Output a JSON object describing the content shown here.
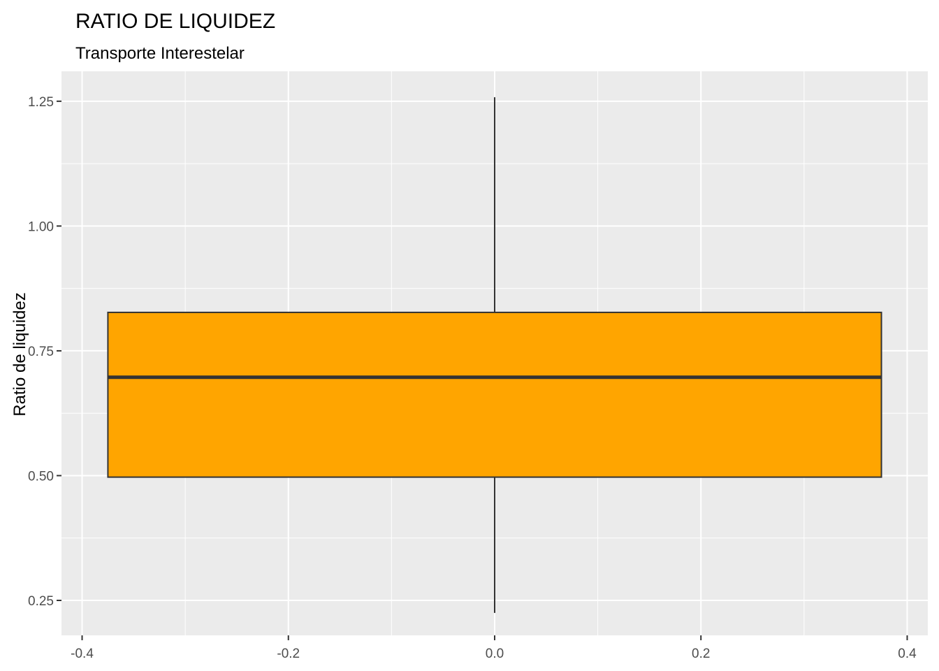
{
  "chart_data": {
    "type": "boxplot",
    "title": "RATIO DE LIQUIDEZ",
    "subtitle": "Transporte Interestelar",
    "xlabel": "",
    "ylabel": "Ratio de liquidez",
    "xlim": [
      -0.42,
      0.42
    ],
    "ylim": [
      0.18,
      1.31
    ],
    "x_ticks": [
      -0.4,
      -0.2,
      0.0,
      0.2,
      0.4
    ],
    "x_tick_labels": [
      "-0.4",
      "-0.2",
      "0.0",
      "0.2",
      "0.4"
    ],
    "y_ticks": [
      0.25,
      0.5,
      0.75,
      1.0,
      1.25
    ],
    "y_tick_labels": [
      "0.25",
      "0.50",
      "0.75",
      "1.00",
      "1.25"
    ],
    "grid": true,
    "box": {
      "x_center": 0.0,
      "x_half_width": 0.375,
      "min": 0.225,
      "q1": 0.497,
      "median": 0.697,
      "q3": 0.827,
      "max": 1.258,
      "fill": "#FFA500",
      "stroke": "#333333"
    },
    "panel_background": "#EBEBEB",
    "grid_color": "#FFFFFF"
  }
}
